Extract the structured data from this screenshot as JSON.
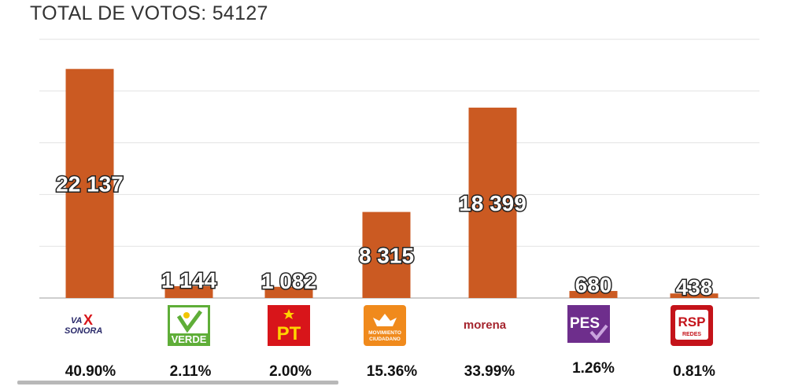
{
  "title": "TOTAL DE VOTOS: 54127",
  "chart_data": {
    "type": "bar",
    "categories": [
      "VA X SONORA",
      "VERDE",
      "PT",
      "MOVIMIENTO CIUDADANO",
      "morena",
      "PES",
      "RSP REDES"
    ],
    "values": [
      22137,
      1144,
      1082,
      8315,
      18399,
      680,
      438
    ],
    "value_labels": [
      "22 137",
      "1 144",
      "1 082",
      "8 315",
      "18 399",
      "680",
      "438"
    ],
    "percentages": [
      "40.90%",
      "2.11%",
      "2.00%",
      "15.36%",
      "33.99%",
      "1.26%",
      "0.81%"
    ],
    "ylim": [
      0,
      25000
    ],
    "grid": true,
    "bar_color": "#cb5a22"
  },
  "logos": {
    "vaxsonora": {
      "line1": "VA",
      "x": "X",
      "line2": "SONORA"
    },
    "verde": {
      "text": "VERDE"
    },
    "pt": {
      "text": "PT"
    },
    "mc": {
      "line1": "MOVIMIENTO",
      "line2": "CIUDADANO"
    },
    "morena": {
      "text": "morena"
    },
    "pes": {
      "text": "PES"
    },
    "rsp": {
      "text": "RSP",
      "sub": "REDES"
    }
  },
  "colors": {
    "verde": "#5fae38",
    "pt": "#d8151a",
    "mc": "#f08a1c",
    "morena": "#a5252e",
    "pes": "#6e2e8c",
    "rsp": "#c4131a"
  }
}
